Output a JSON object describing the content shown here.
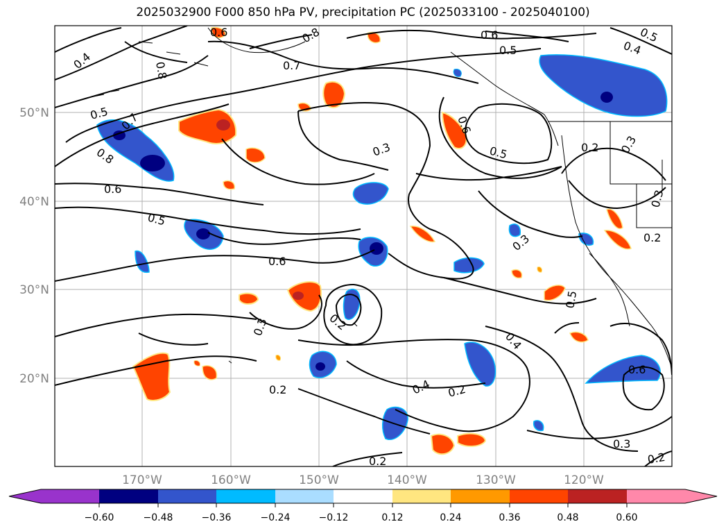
{
  "title": "2025032900 F000 850 hPa PV, precipitation PC (2025033100 - 2025040100)",
  "map": {
    "lon_labels": [
      "170°W",
      "160°W",
      "150°W",
      "140°W",
      "130°W",
      "120°W"
    ],
    "lat_labels": [
      "50°N",
      "40°N",
      "30°N",
      "20°N"
    ],
    "contour_labels": [
      "0.4",
      "0.6",
      "0.8",
      "0.7",
      "0.6",
      "0.4",
      "0.5",
      "0.7",
      "0.8",
      "0.6",
      "0.5",
      "0.3",
      "0.6",
      "0.3",
      "0.2",
      "0.6",
      "0.5",
      "0.2",
      "0.2",
      "0.3",
      "0.3",
      "0.2",
      "0.4",
      "0.4",
      "0.2",
      "0.5",
      "0.6",
      "0.3",
      "0.2",
      "0.2",
      "0.5",
      "0.3",
      "0.5",
      "0.8"
    ],
    "grid": true
  },
  "colorbar": {
    "ticks": [
      "−0.60",
      "−0.48",
      "−0.36",
      "−0.24",
      "−0.12",
      "0.12",
      "0.24",
      "0.36",
      "0.48",
      "0.60"
    ],
    "colors": [
      "#9933cc",
      "#000080",
      "#3355cc",
      "#00bbff",
      "#aaddff",
      "#ffffff",
      "#ffe680",
      "#ff9900",
      "#ff4400",
      "#bb2222",
      "#ff88aa"
    ],
    "extend": "both"
  }
}
